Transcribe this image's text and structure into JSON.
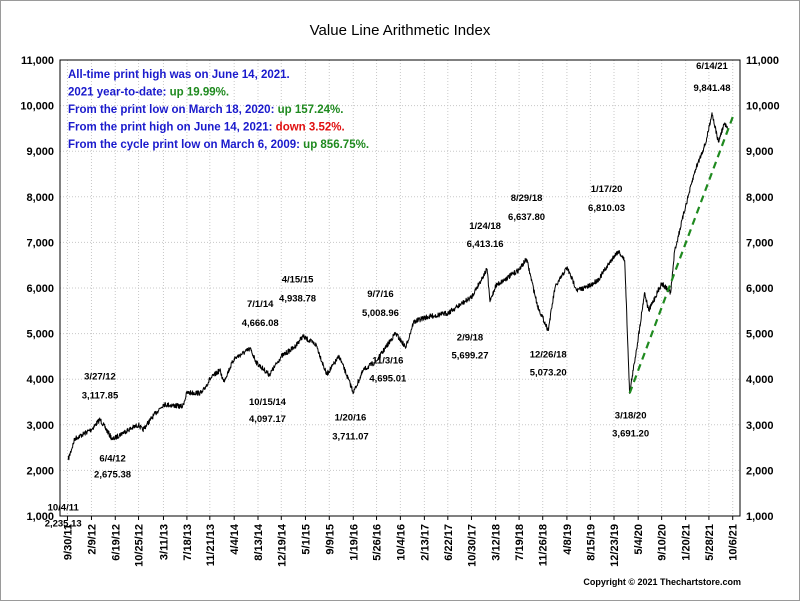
{
  "chart_data": {
    "type": "line",
    "title": "Value Line Arithmetic Index",
    "xlabel": "",
    "ylabel": "",
    "ylim": [
      1000,
      11000
    ],
    "y_ticks": [
      "1,000",
      "2,000",
      "3,000",
      "4,000",
      "5,000",
      "6,000",
      "7,000",
      "8,000",
      "9,000",
      "10,000",
      "11,000"
    ],
    "x_tick_labels": [
      "9/30/11",
      "2/9/12",
      "6/19/12",
      "10/25/12",
      "3/11/13",
      "7/18/13",
      "11/21/13",
      "4/4/14",
      "8/13/14",
      "12/19/14",
      "5/1/15",
      "9/9/15",
      "1/19/16",
      "5/26/16",
      "10/4/16",
      "2/13/17",
      "6/22/17",
      "10/30/17",
      "3/12/18",
      "7/19/18",
      "11/26/18",
      "4/8/19",
      "8/15/19",
      "12/23/19",
      "5/4/20",
      "9/10/20",
      "1/20/21",
      "5/28/21",
      "10/6/21"
    ],
    "grid": true,
    "series": [
      {
        "values": [
          [
            "2011-10-04",
            2235.13
          ],
          [
            "2011-11-10",
            2700
          ],
          [
            "2011-12-20",
            2780
          ],
          [
            "2012-02-09",
            2900
          ],
          [
            "2012-03-27",
            3117.85
          ],
          [
            "2012-06-04",
            2675.38
          ],
          [
            "2012-08-01",
            2830
          ],
          [
            "2012-10-25",
            3000
          ],
          [
            "2012-11-16",
            2880
          ],
          [
            "2013-01-15",
            3200
          ],
          [
            "2013-03-11",
            3450
          ],
          [
            "2013-06-24",
            3400
          ],
          [
            "2013-07-18",
            3700
          ],
          [
            "2013-10-09",
            3700
          ],
          [
            "2013-11-21",
            4000
          ],
          [
            "2014-01-15",
            4200
          ],
          [
            "2014-02-05",
            3950
          ],
          [
            "2014-04-04",
            4450
          ],
          [
            "2014-07-01",
            4666.08
          ],
          [
            "2014-08-07",
            4350
          ],
          [
            "2014-10-15",
            4097.17
          ],
          [
            "2014-12-19",
            4500
          ],
          [
            "2015-03-01",
            4700
          ],
          [
            "2015-04-15",
            4938.78
          ],
          [
            "2015-06-30",
            4750
          ],
          [
            "2015-08-25",
            4100
          ],
          [
            "2015-11-03",
            4500
          ],
          [
            "2016-01-20",
            3711.07
          ],
          [
            "2016-03-15",
            4200
          ],
          [
            "2016-05-26",
            4400
          ],
          [
            "2016-09-07",
            5008.96
          ],
          [
            "2016-11-03",
            4695.01
          ],
          [
            "2016-12-15",
            5250
          ],
          [
            "2017-02-13",
            5350
          ],
          [
            "2017-06-22",
            5450
          ],
          [
            "2017-10-30",
            5800
          ],
          [
            "2018-01-24",
            6413.16
          ],
          [
            "2018-02-09",
            5699.27
          ],
          [
            "2018-03-12",
            6050
          ],
          [
            "2018-07-19",
            6400
          ],
          [
            "2018-08-29",
            6637.8
          ],
          [
            "2018-10-29",
            5600
          ],
          [
            "2018-12-26",
            5073.2
          ],
          [
            "2019-02-01",
            6000
          ],
          [
            "2019-04-08",
            6450
          ],
          [
            "2019-06-03",
            5950
          ],
          [
            "2019-08-15",
            6050
          ],
          [
            "2019-10-01",
            6200
          ],
          [
            "2019-12-23",
            6700
          ],
          [
            "2020-01-17",
            6810.03
          ],
          [
            "2020-02-20",
            6600
          ],
          [
            "2020-03-18",
            3691.2
          ],
          [
            "2020-05-04",
            4900
          ],
          [
            "2020-06-08",
            5900
          ],
          [
            "2020-07-01",
            5500
          ],
          [
            "2020-09-10",
            6100
          ],
          [
            "2020-10-30",
            5900
          ],
          [
            "2020-11-20",
            6800
          ],
          [
            "2021-01-20",
            7800
          ],
          [
            "2021-03-15",
            8600
          ],
          [
            "2021-05-12",
            9200
          ],
          [
            "2021-06-14",
            9841.48
          ],
          [
            "2021-07-19",
            9200
          ],
          [
            "2021-08-20",
            9600
          ],
          [
            "2021-09-07",
            9494.75
          ]
        ]
      },
      {
        "style": "dashed",
        "color": "#1f8a1f",
        "values": [
          [
            "2020-03-18",
            3691.2
          ],
          [
            "2021-10-06",
            9750
          ]
        ]
      }
    ],
    "annotations": [
      {
        "x": "2011-10-04",
        "y": 2235.13,
        "value": "2,235.13",
        "date": "10/4/11"
      },
      {
        "x": "2012-03-27",
        "y": 3117.85,
        "value": "3,117.85",
        "date": "3/27/12"
      },
      {
        "x": "2012-06-04",
        "y": 2675.38,
        "value": "2,675.38",
        "date": "6/4/12"
      },
      {
        "x": "2014-07-01",
        "y": 4666.08,
        "value": "4,666.08",
        "date": "7/1/14"
      },
      {
        "x": "2014-10-15",
        "y": 4097.17,
        "value": "4,097.17",
        "date": "10/15/14"
      },
      {
        "x": "2015-04-15",
        "y": 4938.78,
        "value": "4,938.78",
        "date": "4/15/15"
      },
      {
        "x": "2016-01-20",
        "y": 3711.07,
        "value": "3,711.07",
        "date": "1/20/16"
      },
      {
        "x": "2016-09-07",
        "y": 5008.96,
        "value": "5,008.96",
        "date": "9/7/16"
      },
      {
        "x": "2016-11-03",
        "y": 4695.01,
        "value": "4,695.01",
        "date": "11/3/16"
      },
      {
        "x": "2018-01-24",
        "y": 6413.16,
        "value": "6,413.16",
        "date": "1/24/18"
      },
      {
        "x": "2018-02-09",
        "y": 5699.27,
        "value": "5,699.27",
        "date": "2/9/18"
      },
      {
        "x": "2018-08-29",
        "y": 6637.8,
        "value": "6,637.80",
        "date": "8/29/18"
      },
      {
        "x": "2018-12-26",
        "y": 5073.2,
        "value": "5,073.20",
        "date": "12/26/18"
      },
      {
        "x": "2020-01-17",
        "y": 6810.03,
        "value": "6,810.03",
        "date": "1/17/20"
      },
      {
        "x": "2020-03-18",
        "y": 3691.2,
        "value": "3,691.20",
        "date": "3/18/20"
      },
      {
        "x": "2021-06-14",
        "y": 9841.48,
        "value": "9,841.48",
        "date": "6/14/21"
      }
    ],
    "info_lines": [
      {
        "text": "All-time print high was on June 14, 2021.",
        "highlight": "",
        "color": "#1a1acc",
        "highlight_color": "#1a1acc"
      },
      {
        "text": "2021 year-to-date: ",
        "highlight": "up 19.99%.",
        "color": "#1a1acc",
        "highlight_color": "#1f8a1f"
      },
      {
        "text": "From the print low on March 18, 2020:  ",
        "highlight": "up 157.24%.",
        "color": "#1a1acc",
        "highlight_color": "#1f8a1f"
      },
      {
        "text": "From the print high on June 14, 2021:  ",
        "highlight": "down 3.52%.",
        "color": "#1a1acc",
        "highlight_color": "#e01010"
      },
      {
        "text": "From the cycle print low on March 6, 2009:  ",
        "highlight": "up 856.75%.",
        "color": "#1a1acc",
        "highlight_color": "#1f8a1f"
      }
    ],
    "copyright": "Copyright © 2021 Thechartstore.com"
  }
}
